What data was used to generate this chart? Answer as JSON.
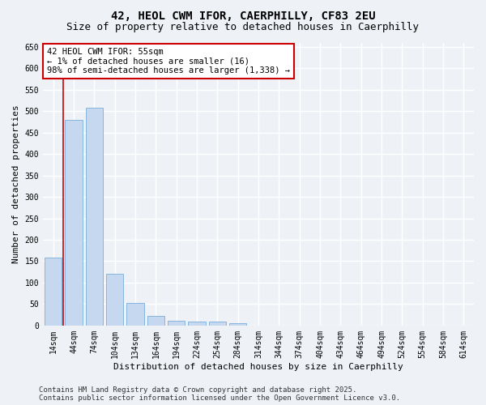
{
  "title_line1": "42, HEOL CWM IFOR, CAERPHILLY, CF83 2EU",
  "title_line2": "Size of property relative to detached houses in Caerphilly",
  "xlabel": "Distribution of detached houses by size in Caerphilly",
  "ylabel": "Number of detached properties",
  "bar_color": "#c5d8f0",
  "bar_edge_color": "#7aaedc",
  "categories": [
    "14sqm",
    "44sqm",
    "74sqm",
    "104sqm",
    "134sqm",
    "164sqm",
    "194sqm",
    "224sqm",
    "254sqm",
    "284sqm",
    "314sqm",
    "344sqm",
    "374sqm",
    "404sqm",
    "434sqm",
    "464sqm",
    "494sqm",
    "524sqm",
    "554sqm",
    "584sqm",
    "614sqm"
  ],
  "values": [
    158,
    480,
    507,
    120,
    52,
    22,
    11,
    10,
    10,
    6,
    0,
    0,
    0,
    0,
    0,
    0,
    0,
    0,
    0,
    0,
    0
  ],
  "ylim": [
    0,
    660
  ],
  "yticks": [
    0,
    50,
    100,
    150,
    200,
    250,
    300,
    350,
    400,
    450,
    500,
    550,
    600,
    650
  ],
  "vline_x": 1.5,
  "vline_color": "#cc0000",
  "annotation_text": "42 HEOL CWM IFOR: 55sqm\n← 1% of detached houses are smaller (16)\n98% of semi-detached houses are larger (1,338) →",
  "annotation_box_color": "#ffffff",
  "annotation_box_edge": "#cc0000",
  "footer_text": "Contains HM Land Registry data © Crown copyright and database right 2025.\nContains public sector information licensed under the Open Government Licence v3.0.",
  "background_color": "#eef2f7",
  "plot_bg_color": "#eef2f7",
  "grid_color": "#ffffff",
  "title_fontsize": 10,
  "subtitle_fontsize": 9,
  "axis_label_fontsize": 8,
  "tick_fontsize": 7,
  "footer_fontsize": 6.5,
  "annotation_fontsize": 7.5
}
